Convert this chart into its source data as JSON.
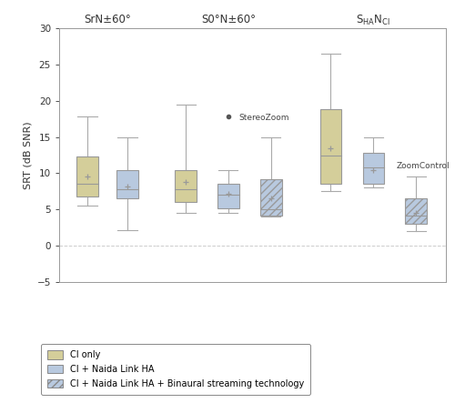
{
  "ylabel": "SRT (dB SNR)",
  "ylim": [
    -5,
    30
  ],
  "yticks": [
    -5,
    0,
    5,
    10,
    15,
    20,
    25,
    30
  ],
  "boxes": {
    "SrN": {
      "CI_only": {
        "q1": 6.8,
        "median": 8.5,
        "q3": 12.3,
        "whislo": 5.5,
        "whishi": 17.8,
        "mean": 9.5,
        "fliers": []
      },
      "CI_HA": {
        "q1": 6.5,
        "median": 7.8,
        "q3": 10.5,
        "whislo": 2.2,
        "whishi": 15.0,
        "mean": 8.2,
        "fliers": []
      },
      "CI_HA_BT": null
    },
    "S0N": {
      "CI_only": {
        "q1": 6.0,
        "median": 7.8,
        "q3": 10.5,
        "whislo": 4.5,
        "whishi": 19.5,
        "mean": 8.8,
        "fliers": []
      },
      "CI_HA": {
        "q1": 5.2,
        "median": 7.0,
        "q3": 8.5,
        "whislo": 4.5,
        "whishi": 10.5,
        "mean": 7.2,
        "fliers": [
          17.8
        ]
      },
      "CI_HA_BT": {
        "q1": 4.2,
        "median": 5.0,
        "q3": 9.2,
        "whislo": 4.0,
        "whishi": 15.0,
        "mean": 6.5,
        "fliers": []
      }
    },
    "SHANCI": {
      "CI_only": {
        "q1": 8.5,
        "median": 12.5,
        "q3": 18.8,
        "whislo": 7.5,
        "whishi": 26.5,
        "mean": 13.5,
        "fliers": []
      },
      "CI_HA": {
        "q1": 8.5,
        "median": 10.8,
        "q3": 12.8,
        "whislo": 8.0,
        "whishi": 15.0,
        "mean": 10.5,
        "fliers": []
      },
      "CI_HA_BT": {
        "q1": 3.0,
        "median": 4.2,
        "q3": 6.5,
        "whislo": 2.0,
        "whishi": 9.5,
        "mean": 4.5,
        "fliers": []
      }
    }
  },
  "colors": {
    "CI_only": "#d4ce9a",
    "CI_HA": "#b8c9df",
    "CI_HA_BT": "#b8c9df"
  },
  "background": "#ffffff",
  "grid_color": "#cccccc",
  "box_linecolor": "#999999",
  "whisker_color": "#aaaaaa",
  "flier_color": "#555555",
  "legend_labels": [
    "CI only",
    "CI + Naida Link HA",
    "CI + Naida Link HA + Binaural streaming technology"
  ]
}
